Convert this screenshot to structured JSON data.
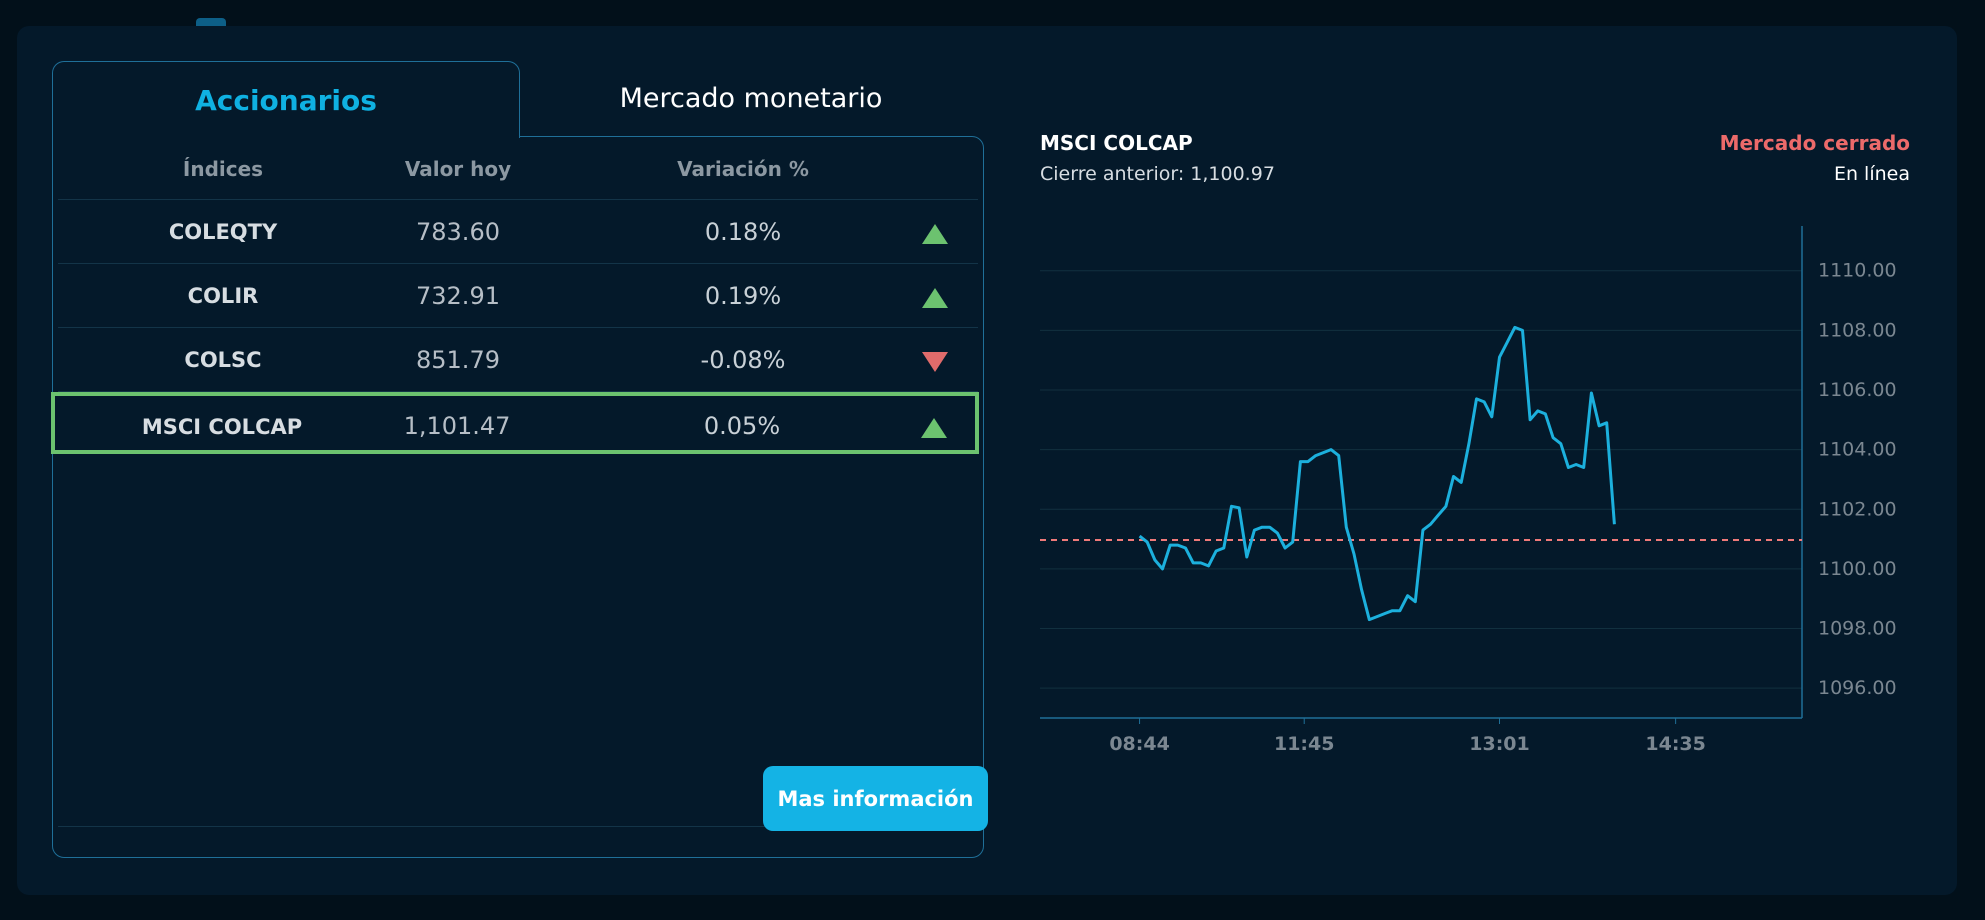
{
  "tabs": {
    "active": "Accionarios",
    "inactive": "Mercado monetario"
  },
  "table": {
    "headers": [
      "Índices",
      "Valor hoy",
      "Variación %"
    ],
    "rows": [
      {
        "name": "COLEQTY",
        "value": "783.60",
        "change": "0.18%",
        "direction": "up"
      },
      {
        "name": "COLIR",
        "value": "732.91",
        "change": "0.19%",
        "direction": "up"
      },
      {
        "name": "COLSC",
        "value": "851.79",
        "change": "-0.08%",
        "direction": "down"
      },
      {
        "name": "MSCI COLCAP",
        "value": "1,101.47",
        "change": "0.05%",
        "direction": "up"
      }
    ],
    "selected_row": 3
  },
  "more_button": "Mas información",
  "chart_header": {
    "title": "MSCI COLCAP",
    "previous_close": "Cierre anterior: 1,100.97",
    "market_status": "Mercado cerrado",
    "connection": "En línea"
  },
  "colors": {
    "line": "#1cb0dd",
    "reference_line": "#ef7a7a",
    "up": "#6cc26f",
    "down": "#e06b6b",
    "accent": "#0fb1e2"
  },
  "chart_data": {
    "type": "line",
    "x_tick_labels": [
      "08:44",
      "11:45",
      "13:01",
      "14:35"
    ],
    "y_tick_labels": [
      "1096.00",
      "1098.00",
      "1100.00",
      "1102.00",
      "1104.00",
      "1106.00",
      "1108.00",
      "1110.00"
    ],
    "ylim": [
      1095,
      1111.5
    ],
    "reference_value": 1100.97,
    "series": [
      {
        "points": [
          [
            0.0,
            1101.1
          ],
          [
            0.4,
            1100.9
          ],
          [
            0.8,
            1100.3
          ],
          [
            1.2,
            1100.0
          ],
          [
            1.6,
            1100.8
          ],
          [
            2.0,
            1100.8
          ],
          [
            2.4,
            1100.7
          ],
          [
            2.8,
            1100.2
          ],
          [
            3.2,
            1100.2
          ],
          [
            3.6,
            1100.1
          ],
          [
            4.0,
            1100.6
          ],
          [
            4.4,
            1100.7
          ],
          [
            4.8,
            1102.1
          ],
          [
            5.2,
            1102.05
          ],
          [
            5.6,
            1100.4
          ],
          [
            6.0,
            1101.3
          ],
          [
            6.4,
            1101.4
          ],
          [
            6.8,
            1101.4
          ],
          [
            7.2,
            1101.2
          ],
          [
            7.6,
            1100.7
          ],
          [
            8.0,
            1100.9
          ],
          [
            8.4,
            1103.6
          ],
          [
            8.8,
            1103.6
          ],
          [
            9.2,
            1103.8
          ],
          [
            9.6,
            1103.9
          ],
          [
            10.0,
            1104.0
          ],
          [
            10.4,
            1103.8
          ],
          [
            10.8,
            1101.4
          ],
          [
            11.2,
            1100.5
          ],
          [
            11.6,
            1099.3
          ],
          [
            12.0,
            1098.3
          ],
          [
            12.4,
            1098.4
          ],
          [
            12.8,
            1098.5
          ],
          [
            13.2,
            1098.6
          ],
          [
            13.6,
            1098.6
          ],
          [
            14.0,
            1099.1
          ],
          [
            14.4,
            1098.9
          ],
          [
            14.8,
            1101.3
          ],
          [
            15.2,
            1101.5
          ],
          [
            15.6,
            1101.8
          ],
          [
            16.0,
            1102.1
          ],
          [
            16.4,
            1103.1
          ],
          [
            16.8,
            1102.9
          ],
          [
            17.2,
            1104.2
          ],
          [
            17.6,
            1105.7
          ],
          [
            18.0,
            1105.6
          ],
          [
            18.4,
            1105.1
          ],
          [
            18.8,
            1107.1
          ],
          [
            19.2,
            1107.6
          ],
          [
            19.6,
            1108.1
          ],
          [
            20.0,
            1108.0
          ],
          [
            20.4,
            1105.0
          ],
          [
            20.8,
            1105.3
          ],
          [
            21.2,
            1105.2
          ],
          [
            21.6,
            1104.4
          ],
          [
            22.0,
            1104.2
          ],
          [
            22.4,
            1103.4
          ],
          [
            22.8,
            1103.5
          ],
          [
            23.2,
            1103.4
          ],
          [
            23.6,
            1105.9
          ],
          [
            24.0,
            1104.8
          ],
          [
            24.4,
            1104.9
          ],
          [
            24.8,
            1101.5
          ]
        ]
      }
    ]
  }
}
